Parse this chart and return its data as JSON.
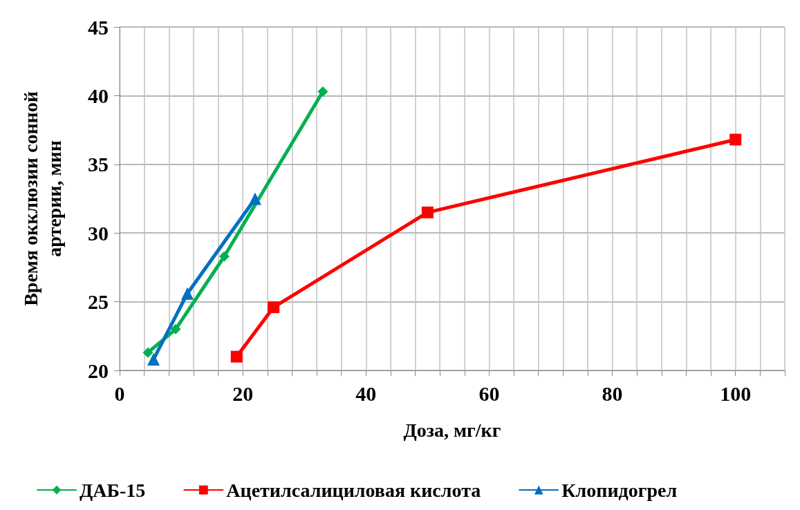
{
  "chart_data": {
    "type": "line",
    "xlabel": "Доза, мг/кг",
    "ylabel": "Время окклюзии сонной\nартерии, мин",
    "xlim": [
      0,
      108
    ],
    "xticks": [
      0,
      {
        "value": 4,
        "label": null
      },
      {
        "value": 8,
        "label": null
      },
      {
        "value": 12,
        "label": null
      },
      {
        "value": 16,
        "label": null
      },
      20,
      {
        "value": 24,
        "label": null
      },
      {
        "value": 28,
        "label": null
      },
      {
        "value": 32,
        "label": null
      },
      {
        "value": 36,
        "label": null
      },
      40,
      {
        "value": 44,
        "label": null
      },
      {
        "value": 48,
        "label": null
      },
      {
        "value": 52,
        "label": null
      },
      {
        "value": 56,
        "label": null
      },
      60,
      {
        "value": 64,
        "label": null
      },
      {
        "value": 68,
        "label": null
      },
      {
        "value": 72,
        "label": null
      },
      {
        "value": 76,
        "label": null
      },
      80,
      {
        "value": 84,
        "label": null
      },
      {
        "value": 88,
        "label": null
      },
      {
        "value": 92,
        "label": null
      },
      {
        "value": 96,
        "label": null
      },
      100,
      {
        "value": 104,
        "label": null
      },
      {
        "value": 108,
        "label": null
      }
    ],
    "ylim": [
      20,
      45
    ],
    "yticks": [
      20,
      25,
      30,
      35,
      40,
      45
    ],
    "grid": true,
    "legend": "bottom",
    "series": [
      {
        "name": "ДАБ-15",
        "color": "#00b050",
        "marker": "diamond",
        "x": [
          4.6,
          9.1,
          17,
          33
        ],
        "values": [
          21.3,
          23.0,
          28.3,
          40.3
        ]
      },
      {
        "name": "Ацетилсалициловая кислота",
        "color": "#ff0000",
        "marker": "square",
        "x": [
          19,
          25,
          50,
          100
        ],
        "values": [
          21.0,
          24.6,
          31.5,
          36.8
        ]
      },
      {
        "name": "Клопидогрел",
        "color": "#0070c0",
        "marker": "triangle",
        "x": [
          5.5,
          11,
          22
        ],
        "values": [
          20.8,
          25.6,
          32.5
        ]
      }
    ]
  }
}
